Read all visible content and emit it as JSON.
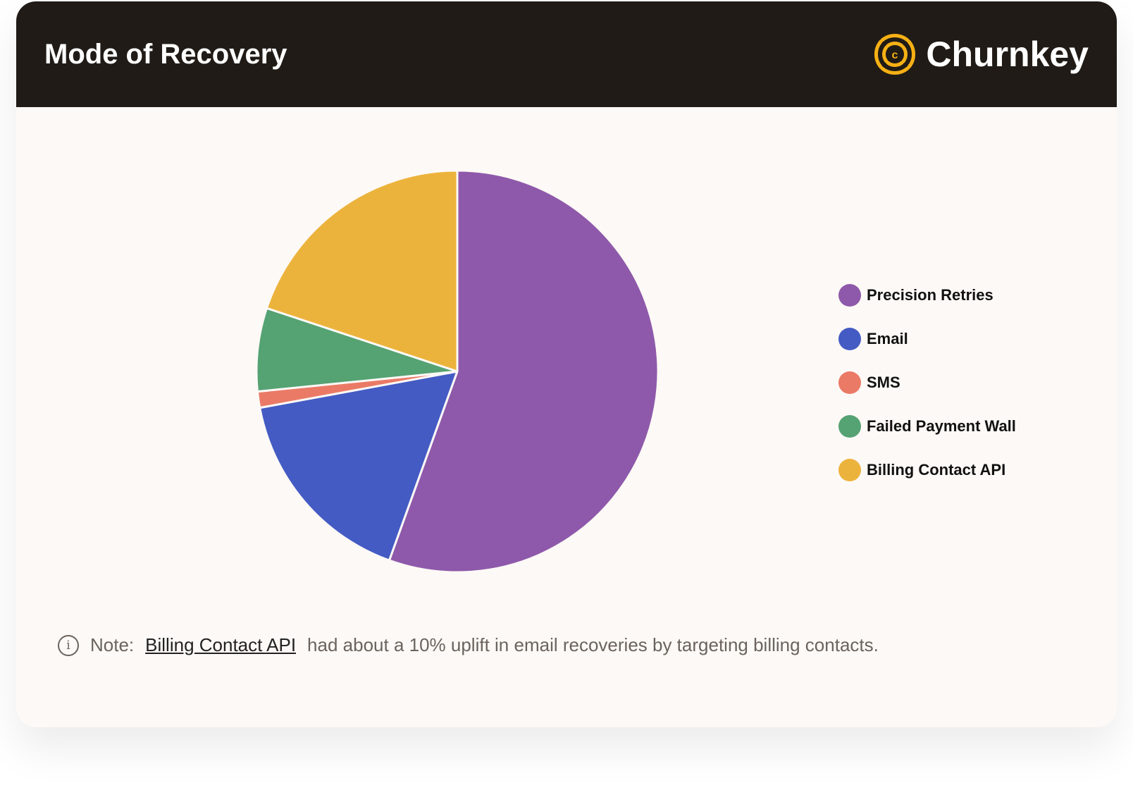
{
  "header": {
    "title": "Mode of Recovery",
    "brand": "Churnkey",
    "brand_color": "#f5b014"
  },
  "chart_data": {
    "type": "pie",
    "categories": [
      "Precision Retries",
      "Email",
      "SMS",
      "Failed Payment Wall",
      "Billing Contact API"
    ],
    "values": [
      55.5,
      16.6,
      1.3,
      6.7,
      19.9
    ],
    "colors": [
      "#8e59aa",
      "#445bc4",
      "#ea7a66",
      "#55a273",
      "#ecb33c"
    ],
    "legend_position": "right",
    "start_angle": "12 o'clock, clockwise"
  },
  "note": {
    "icon": "info-icon",
    "prefix": "Note:",
    "link": "Billing Contact API",
    "text": "had about a 10% uplift in email recoveries by targeting billing contacts."
  }
}
